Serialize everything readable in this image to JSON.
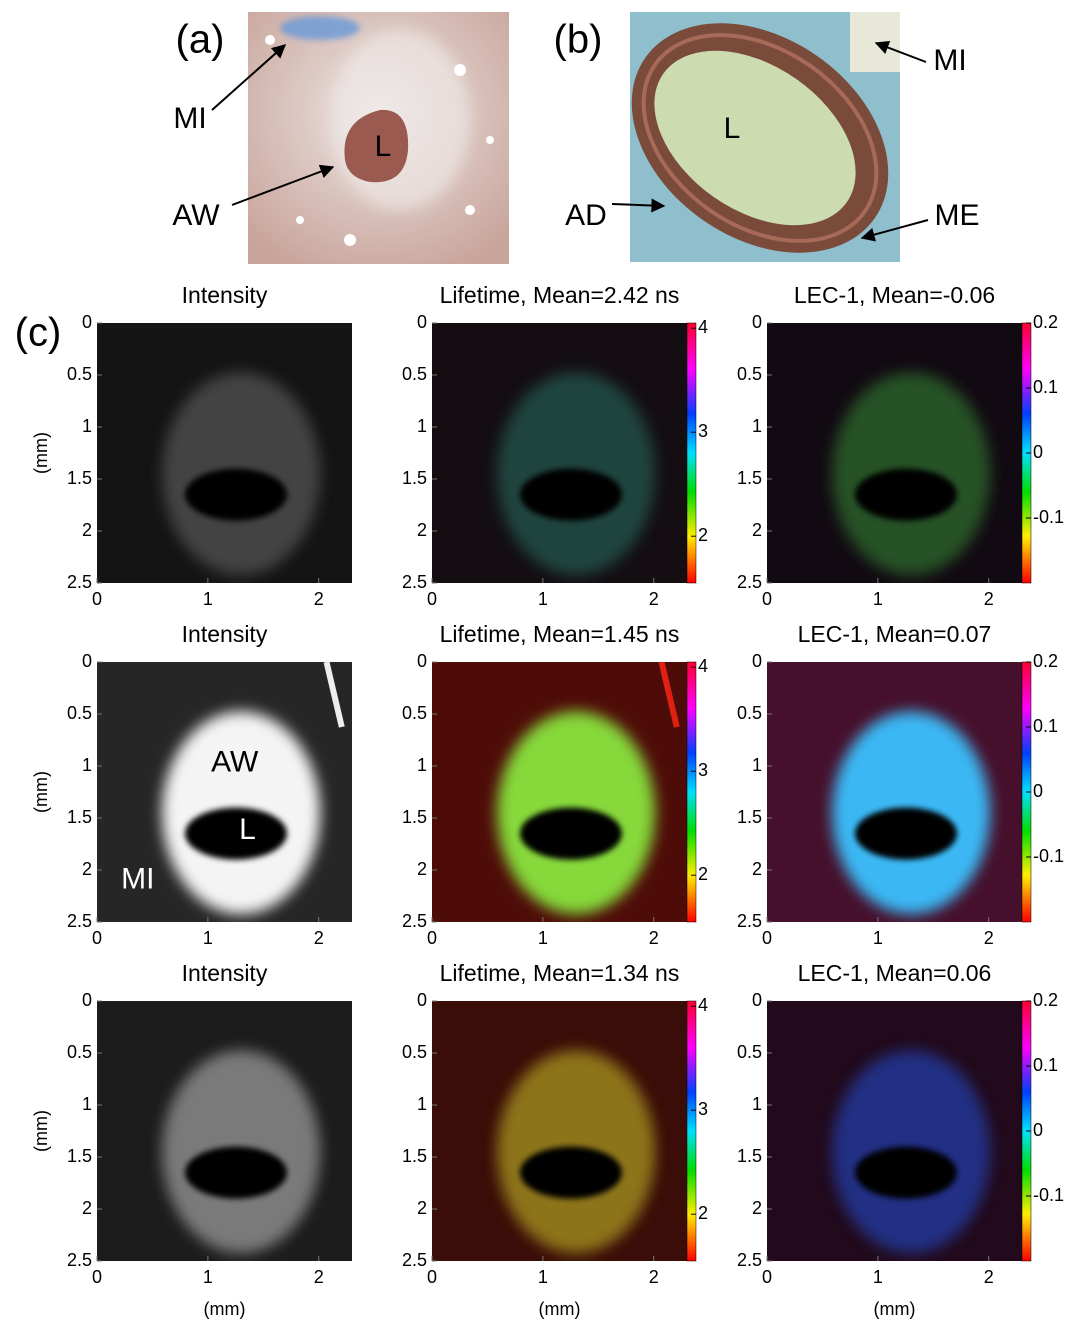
{
  "panel_labels": {
    "a": "(a)",
    "b": "(b)",
    "c": "(c)"
  },
  "photo_a": {
    "mi": "MI",
    "aw": "AW",
    "l": "L"
  },
  "photo_b": {
    "mi": "MI",
    "l": "L",
    "ad": "AD",
    "me": "ME"
  },
  "axes": {
    "x_label": "(mm)",
    "y_label": "(mm)",
    "xlim": [
      0,
      2.3
    ],
    "ylim": [
      0,
      2.5
    ],
    "xticks": [
      0,
      1,
      2
    ],
    "yticks": [
      0,
      0.5,
      1,
      1.5,
      2,
      2.5
    ]
  },
  "colorbars": {
    "lifetime": {
      "clim": [
        1.55,
        4.05
      ],
      "ticks": [
        2,
        3,
        4
      ]
    },
    "lec": {
      "clim": [
        -0.2,
        0.2
      ],
      "ticks": [
        -0.1,
        0,
        0.1,
        0.2
      ]
    }
  },
  "rows": [
    {
      "intensity": "Intensity",
      "lifetime": "Lifetime, Mean=2.42 ns",
      "lec": "LEC-1, Mean=-0.06"
    },
    {
      "intensity": "Intensity",
      "lifetime": "Lifetime, Mean=1.45 ns",
      "lec": "LEC-1, Mean=0.07",
      "labels": {
        "aw": "AW",
        "l": "L",
        "mi": "MI"
      }
    },
    {
      "intensity": "Intensity",
      "lifetime": "Lifetime, Mean=1.34 ns",
      "lec": "LEC-1, Mean=0.06"
    }
  ]
}
